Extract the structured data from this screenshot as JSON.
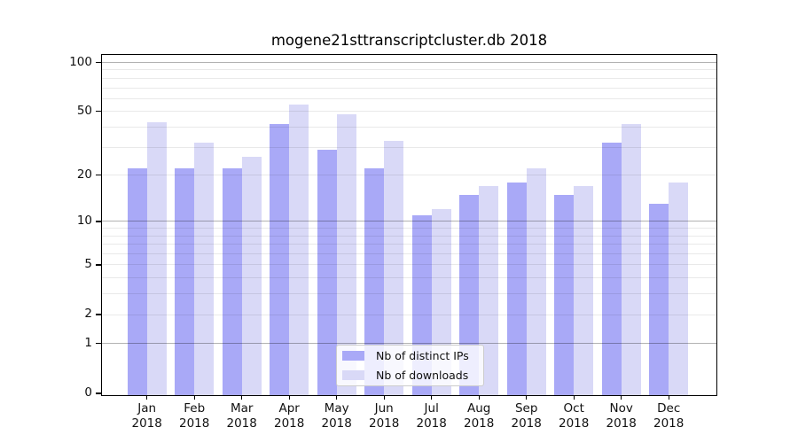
{
  "chart_data": {
    "type": "bar",
    "title": "mogene21sttranscriptcluster.db 2018",
    "categories": [
      "Jan",
      "Feb",
      "Mar",
      "Apr",
      "May",
      "Jun",
      "Jul",
      "Aug",
      "Sep",
      "Oct",
      "Nov",
      "Dec"
    ],
    "x_year": "2018",
    "series": [
      {
        "name": "Nb of distinct IPs",
        "color": "#a9a9f7",
        "values": [
          22,
          22,
          22,
          42,
          29,
          22,
          11,
          15,
          18,
          15,
          32,
          13
        ]
      },
      {
        "name": "Nb of downloads",
        "color": "#d9d9f7",
        "values": [
          43,
          32,
          26,
          55,
          48,
          33,
          12,
          17,
          22,
          17,
          42,
          18
        ]
      }
    ],
    "yscale": "log1p",
    "ylim": [
      0,
      100
    ],
    "yticks": [
      0,
      1,
      2,
      5,
      10,
      20,
      50,
      100
    ],
    "minor_yticks": [
      3,
      4,
      6,
      7,
      8,
      9,
      30,
      40,
      60,
      70,
      80,
      90
    ],
    "grid": true,
    "legend_position": "lower center"
  }
}
